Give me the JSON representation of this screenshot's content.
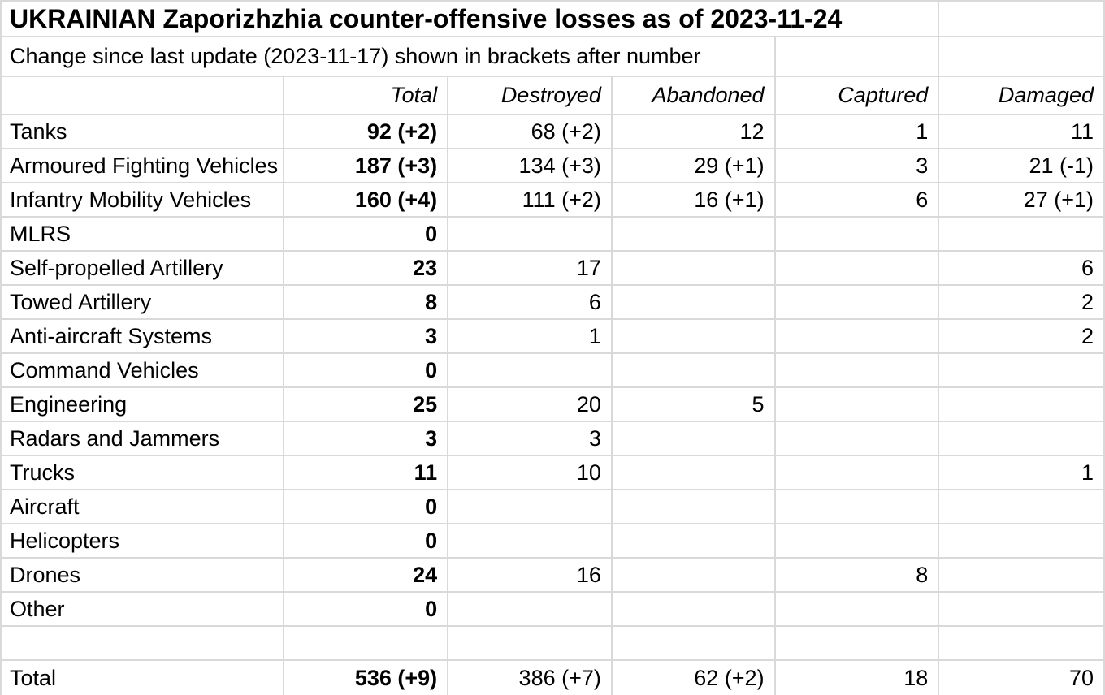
{
  "title": "UKRAINIAN Zaporizhzhia counter-offensive losses as of 2023-11-24",
  "subtitle": "Change since last update (2023-11-17) shown in brackets after number",
  "colors": {
    "gridline": "#d9d9d9",
    "text": "#000000",
    "background": "#ffffff"
  },
  "table": {
    "columns": [
      "",
      "Total",
      "Destroyed",
      "Abandoned",
      "Captured",
      "Damaged"
    ],
    "rows": [
      {
        "type": "data",
        "label": "Tanks",
        "cells": [
          "92 (+2)",
          "68 (+2)",
          "12",
          "1",
          "11"
        ]
      },
      {
        "type": "data",
        "label": "Armoured Fighting Vehicles",
        "cells": [
          "187 (+3)",
          "134 (+3)",
          "29 (+1)",
          "3",
          "21 (-1)"
        ]
      },
      {
        "type": "data",
        "label": "Infantry Mobility Vehicles",
        "cells": [
          "160 (+4)",
          "111 (+2)",
          "16 (+1)",
          "6",
          "27 (+1)"
        ]
      },
      {
        "type": "data",
        "label": "MLRS",
        "cells": [
          "0",
          "",
          "",
          "",
          ""
        ]
      },
      {
        "type": "data",
        "label": "Self-propelled Artillery",
        "cells": [
          "23",
          "17",
          "",
          "",
          "6"
        ]
      },
      {
        "type": "data",
        "label": "Towed Artillery",
        "cells": [
          "8",
          "6",
          "",
          "",
          "2"
        ]
      },
      {
        "type": "data",
        "label": "Anti-aircraft Systems",
        "cells": [
          "3",
          "1",
          "",
          "",
          "2"
        ]
      },
      {
        "type": "data",
        "label": "Command Vehicles",
        "cells": [
          "0",
          "",
          "",
          "",
          ""
        ]
      },
      {
        "type": "data",
        "label": "Engineering",
        "cells": [
          "25",
          "20",
          "5",
          "",
          ""
        ]
      },
      {
        "type": "data",
        "label": "Radars and Jammers",
        "cells": [
          "3",
          "3",
          "",
          "",
          ""
        ]
      },
      {
        "type": "data",
        "label": "Trucks",
        "cells": [
          "11",
          "10",
          "",
          "",
          "1"
        ]
      },
      {
        "type": "data",
        "label": "Aircraft",
        "cells": [
          "0",
          "",
          "",
          "",
          ""
        ]
      },
      {
        "type": "data",
        "label": "Helicopters",
        "cells": [
          "0",
          "",
          "",
          "",
          ""
        ]
      },
      {
        "type": "data",
        "label": "Drones",
        "cells": [
          "24",
          "16",
          "",
          "8",
          ""
        ]
      },
      {
        "type": "data",
        "label": "Other",
        "cells": [
          "0",
          "",
          "",
          "",
          ""
        ]
      },
      {
        "type": "empty",
        "label": "",
        "cells": [
          "",
          "",
          "",
          "",
          ""
        ]
      },
      {
        "type": "total",
        "label": "Total",
        "cells": [
          "536 (+9)",
          "386 (+7)",
          "62 (+2)",
          "18",
          "70"
        ]
      }
    ]
  }
}
